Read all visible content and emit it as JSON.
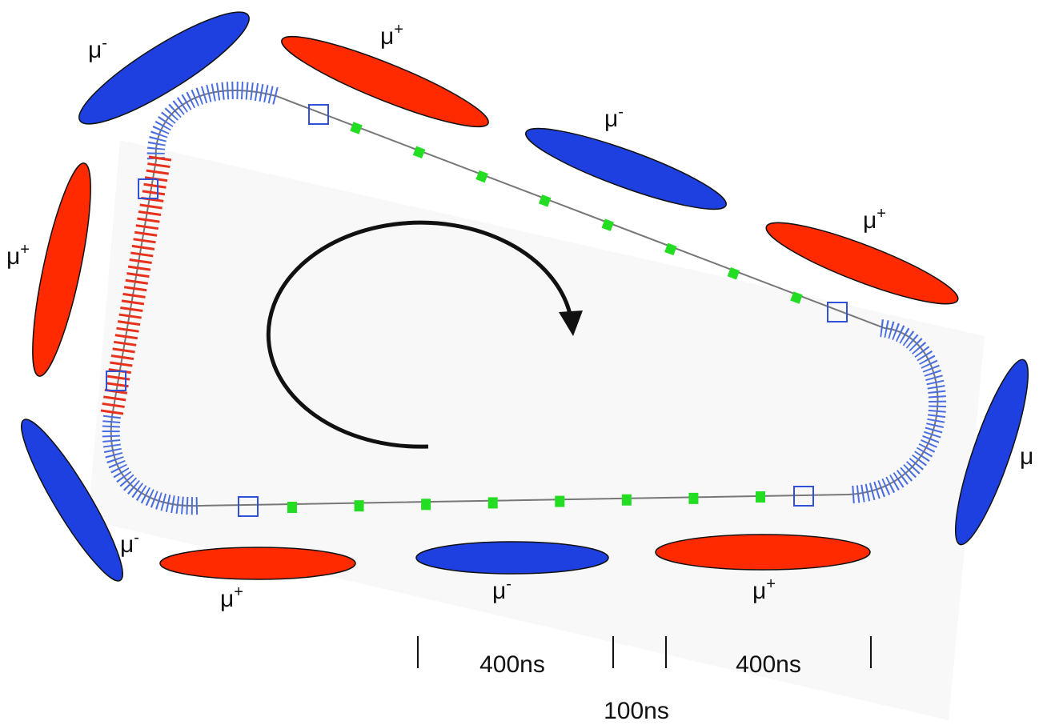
{
  "bunches": [
    {
      "symbol": "μ",
      "charge": "-"
    },
    {
      "symbol": "μ",
      "charge": "+"
    },
    {
      "symbol": "μ",
      "charge": "-"
    },
    {
      "symbol": "μ",
      "charge": "+"
    },
    {
      "symbol": "μ"
    },
    {
      "symbol": "μ",
      "charge": "+"
    },
    {
      "symbol": "μ",
      "charge": "-"
    },
    {
      "symbol": "μ",
      "charge": "+"
    },
    {
      "symbol": "μ",
      "charge": "-"
    },
    {
      "symbol": "μ",
      "charge": "+"
    }
  ],
  "timing_labels": [
    "400ns",
    "400ns",
    "100ns"
  ]
}
